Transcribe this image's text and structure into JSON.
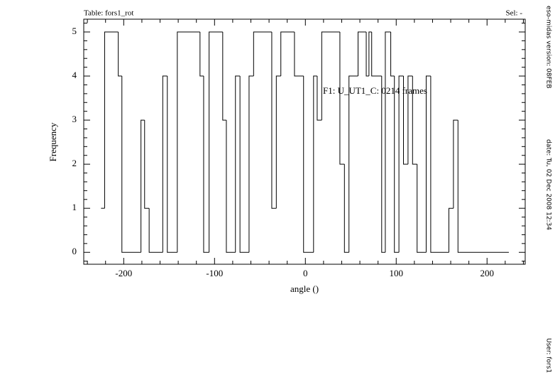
{
  "chart_data": {
    "type": "histogram",
    "title": "Table: fors1_rot",
    "selection": "Sel: -",
    "annotation": "F1: U_UT1_C: 0214 frames",
    "xlabel": "angle ()",
    "ylabel": "Frequency",
    "side_texts": [
      "eso-midas version: 08FEB",
      "date: Tu, 02 Dec 2008 12:34",
      "User: fors1"
    ],
    "bins": [
      -225,
      -221,
      -206,
      -202,
      -181,
      -177,
      -172,
      -157,
      -152,
      -141,
      -116,
      -112,
      -106,
      -91,
      -87,
      -77,
      -72,
      -62,
      -57,
      -37,
      -32,
      -27,
      -12,
      -2,
      9,
      13,
      18,
      38,
      43,
      48,
      58,
      67,
      70,
      73,
      84,
      88,
      94,
      98,
      103,
      108,
      113,
      118,
      123,
      133,
      138,
      158,
      163,
      168,
      224
    ],
    "values": [
      1,
      5,
      4,
      0,
      3,
      1,
      0,
      4,
      0,
      5,
      4,
      0,
      5,
      3,
      0,
      4,
      0,
      4,
      5,
      1,
      4,
      5,
      4,
      0,
      4,
      3,
      5,
      2,
      0,
      4,
      5,
      4,
      5,
      4,
      0,
      5,
      4,
      0,
      4,
      2,
      4,
      2,
      0,
      4,
      0,
      1,
      3,
      0
    ],
    "color": "#000000",
    "xlim": [
      -244,
      242
    ],
    "ylim": [
      -0.27,
      5.29
    ],
    "xticks": [
      -200,
      -100,
      0,
      100,
      200
    ],
    "yticks": [
      0,
      1,
      2,
      3,
      4,
      5
    ],
    "xminorticks": [
      -240,
      -220,
      -180,
      -160,
      -140,
      -120,
      -80,
      -60,
      -40,
      -20,
      20,
      40,
      60,
      80,
      120,
      140,
      160,
      180,
      220,
      240
    ],
    "yminorticks": [
      -0.2,
      0.2,
      0.4,
      0.6,
      0.8,
      1.2,
      1.4,
      1.6,
      1.8,
      2.2,
      2.4,
      2.6,
      2.8,
      3.2,
      3.4,
      3.6,
      3.8,
      4.2,
      4.4,
      4.6,
      4.8,
      5.2
    ]
  }
}
